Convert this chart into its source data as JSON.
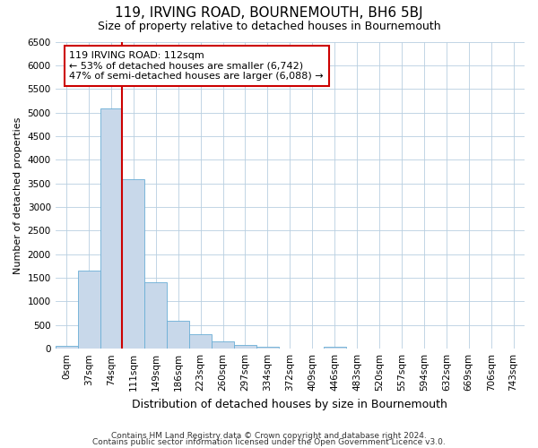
{
  "title": "119, IRVING ROAD, BOURNEMOUTH, BH6 5BJ",
  "subtitle": "Size of property relative to detached houses in Bournemouth",
  "xlabel": "Distribution of detached houses by size in Bournemouth",
  "ylabel": "Number of detached properties",
  "footnote1": "Contains HM Land Registry data © Crown copyright and database right 2024.",
  "footnote2": "Contains public sector information licensed under the Open Government Licence v3.0.",
  "annotation_line1": "119 IRVING ROAD: 112sqm",
  "annotation_line2": "← 53% of detached houses are smaller (6,742)",
  "annotation_line3": "47% of semi-detached houses are larger (6,088) →",
  "bar_labels": [
    "0sqm",
    "37sqm",
    "74sqm",
    "111sqm",
    "149sqm",
    "186sqm",
    "223sqm",
    "260sqm",
    "297sqm",
    "334sqm",
    "372sqm",
    "409sqm",
    "446sqm",
    "483sqm",
    "520sqm",
    "557sqm",
    "594sqm",
    "632sqm",
    "669sqm",
    "706sqm",
    "743sqm"
  ],
  "bar_values": [
    60,
    1650,
    5080,
    3580,
    1400,
    590,
    300,
    150,
    80,
    50,
    0,
    0,
    50,
    0,
    0,
    0,
    0,
    0,
    0,
    0,
    0
  ],
  "bar_color": "#c8d8ea",
  "bar_edge_color": "#6aaed6",
  "vline_color": "#cc0000",
  "vline_x": 2.5,
  "ylim": [
    0,
    6500
  ],
  "yticks": [
    0,
    500,
    1000,
    1500,
    2000,
    2500,
    3000,
    3500,
    4000,
    4500,
    5000,
    5500,
    6000,
    6500
  ],
  "annotation_box_facecolor": "white",
  "annotation_box_edgecolor": "#cc0000",
  "grid_color": "#b8cfe0",
  "background_color": "#ffffff",
  "title_fontsize": 11,
  "subtitle_fontsize": 9,
  "ylabel_fontsize": 8,
  "xlabel_fontsize": 9,
  "annotation_fontsize": 8,
  "tick_fontsize": 7.5,
  "footnote_fontsize": 6.5
}
